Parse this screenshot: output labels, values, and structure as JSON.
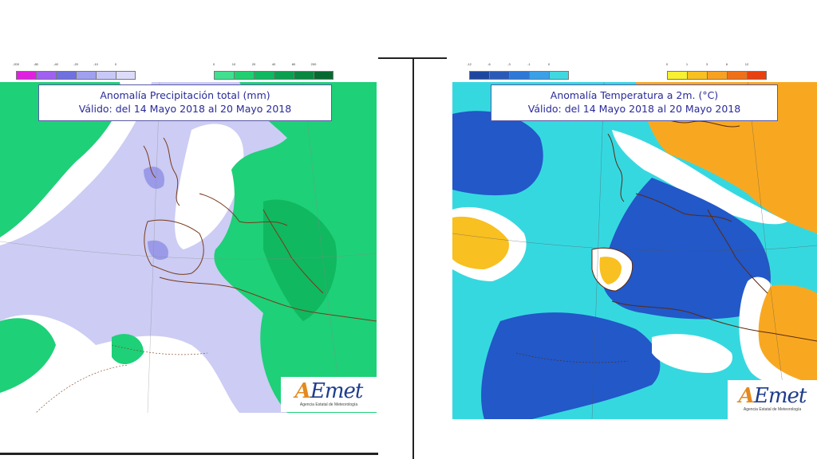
{
  "panels": {
    "precipitation": {
      "title_line1": "Anomalía Precipitación total (mm)",
      "title_line2": "Válido: del 14 Mayo 2018 al 20 Mayo 2018",
      "legend_negative": [
        {
          "label": "-200",
          "color": "#e020e0"
        },
        {
          "label": "-80",
          "color": "#a060f0"
        },
        {
          "label": "-40",
          "color": "#7070e0"
        },
        {
          "label": "-20",
          "color": "#a0a0f0"
        },
        {
          "label": "-10",
          "color": "#c8c8f8"
        },
        {
          "label": "0",
          "color": "#dcdcfa"
        }
      ],
      "legend_positive": [
        {
          "label": "0",
          "color": "#40e090"
        },
        {
          "label": "10",
          "color": "#20d070"
        },
        {
          "label": "20",
          "color": "#10b860"
        },
        {
          "label": "40",
          "color": "#0aa050"
        },
        {
          "label": "80",
          "color": "#088840"
        },
        {
          "label": "200",
          "color": "#066a30"
        }
      ]
    },
    "temperature": {
      "title_line1": "Anomalía Temperatura a 2m. (°C)",
      "title_line2": "Válido: del 14 Mayo 2018 al 20 Mayo 2018",
      "legend_negative": [
        {
          "label": "-12",
          "color": "#1e46a0"
        },
        {
          "label": "-6",
          "color": "#2a5ab8"
        },
        {
          "label": "-3",
          "color": "#2e78d8"
        },
        {
          "label": "-1",
          "color": "#3aa0e8"
        },
        {
          "label": "0",
          "color": "#40d8e0"
        }
      ],
      "legend_positive": [
        {
          "label": "0",
          "color": "#f8f030"
        },
        {
          "label": "1",
          "color": "#f8c020"
        },
        {
          "label": "3",
          "color": "#f8a020"
        },
        {
          "label": "6",
          "color": "#f07018"
        },
        {
          "label": "12",
          "color": "#e84010"
        }
      ]
    }
  },
  "logo": {
    "brand_accent": "A",
    "brand_rest": "Emet",
    "subtitle": "Agencia Estatal de Meteorología",
    "accent_color": "#e38a1e",
    "text_color": "#1e3c8c"
  },
  "colors": {
    "precip_dry": "#ccccf4",
    "precip_dry_strong": "#9a9ae8",
    "precip_neutral": "#ffffff",
    "precip_wet": "#1ed078",
    "precip_wet_strong": "#10b860",
    "temp_cold_strong": "#2258c8",
    "temp_cold": "#36d8e0",
    "temp_neutral": "#ffffff",
    "temp_warm": "#f8c020",
    "temp_warm_strong": "#f8a820",
    "coast": "#7a3a1a"
  }
}
